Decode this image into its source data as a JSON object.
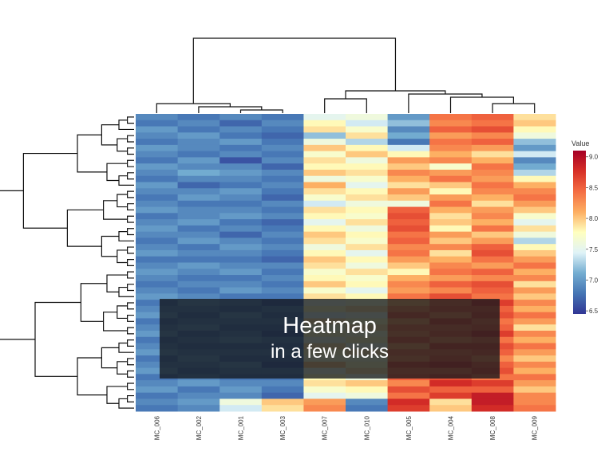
{
  "chart_data": {
    "type": "heatmap",
    "columns": [
      "MC_006",
      "MC_002",
      "MC_001",
      "MC_003",
      "MC_007",
      "MC_010",
      "MC_005",
      "MC_004",
      "MC_008",
      "MC_009"
    ],
    "legend": {
      "title": "Value",
      "ticks": [
        6.5,
        7.0,
        7.5,
        8.0,
        8.5,
        9.0
      ],
      "range": [
        6.45,
        9.1
      ],
      "placement": "right"
    },
    "colorscale": [
      "#313695",
      "#4575b4",
      "#74add1",
      "#e0f3f8",
      "#ffffbf",
      "#fdae61",
      "#f46d43",
      "#d73027",
      "#a50026"
    ],
    "row_dendrogram": true,
    "column_dendrogram": true,
    "values": [
      [
        6.9,
        6.8,
        6.9,
        6.8,
        7.5,
        7.6,
        7.0,
        8.4,
        8.5,
        7.9
      ],
      [
        6.8,
        6.9,
        6.7,
        6.9,
        7.8,
        7.4,
        7.2,
        8.3,
        8.4,
        8.0
      ],
      [
        7.0,
        6.8,
        6.9,
        6.8,
        7.9,
        7.7,
        6.9,
        8.5,
        8.6,
        7.8
      ],
      [
        6.9,
        7.0,
        6.8,
        6.7,
        7.2,
        7.9,
        7.1,
        8.2,
        8.3,
        7.6
      ],
      [
        6.8,
        6.9,
        7.0,
        6.8,
        7.6,
        7.3,
        6.8,
        8.4,
        8.5,
        7.2
      ],
      [
        7.0,
        6.9,
        6.8,
        6.9,
        8.0,
        7.8,
        7.4,
        8.3,
        8.2,
        7.0
      ],
      [
        6.9,
        6.8,
        6.9,
        6.8,
        7.7,
        8.0,
        7.8,
        8.1,
        7.9,
        7.4
      ],
      [
        6.8,
        7.0,
        6.6,
        6.9,
        7.9,
        7.6,
        8.2,
        8.3,
        8.1,
        6.9
      ],
      [
        7.0,
        6.9,
        6.9,
        6.7,
        7.8,
        7.8,
        8.0,
        7.7,
        8.4,
        7.1
      ],
      [
        6.9,
        7.1,
        7.0,
        6.9,
        8.0,
        7.9,
        8.3,
        8.2,
        8.3,
        7.3
      ],
      [
        6.8,
        6.9,
        6.9,
        6.8,
        7.6,
        7.7,
        8.1,
        8.4,
        8.2,
        7.8
      ],
      [
        7.0,
        6.7,
        6.8,
        6.9,
        8.1,
        7.5,
        7.9,
        8.0,
        8.4,
        8.1
      ],
      [
        6.9,
        6.9,
        7.0,
        6.8,
        7.9,
        7.8,
        8.2,
        7.8,
        8.3,
        8.3
      ],
      [
        6.8,
        7.0,
        6.9,
        6.7,
        7.7,
        7.9,
        8.0,
        8.2,
        8.1,
        8.4
      ],
      [
        6.9,
        6.8,
        6.8,
        6.9,
        7.4,
        7.6,
        7.6,
        8.4,
        7.9,
        8.2
      ],
      [
        7.0,
        6.9,
        6.9,
        6.8,
        7.9,
        7.8,
        8.5,
        8.1,
        8.2,
        8.0
      ],
      [
        6.8,
        6.9,
        7.0,
        6.9,
        7.8,
        7.7,
        8.6,
        7.9,
        8.3,
        7.7
      ],
      [
        6.9,
        7.0,
        6.8,
        6.7,
        7.5,
        7.9,
        8.5,
        8.0,
        8.1,
        7.5
      ],
      [
        7.0,
        6.8,
        6.9,
        6.8,
        7.8,
        7.6,
        8.6,
        7.8,
        8.4,
        7.9
      ],
      [
        6.9,
        6.9,
        6.7,
        6.9,
        8.0,
        7.8,
        8.4,
        8.2,
        8.0,
        7.6
      ],
      [
        6.8,
        7.0,
        6.9,
        6.8,
        7.9,
        7.7,
        8.5,
        8.0,
        8.2,
        7.3
      ],
      [
        6.9,
        6.8,
        7.0,
        6.9,
        7.6,
        7.9,
        8.3,
        8.3,
        8.5,
        7.8
      ],
      [
        7.0,
        6.9,
        6.9,
        6.8,
        7.8,
        7.5,
        8.4,
        7.9,
        8.6,
        8.0
      ],
      [
        6.8,
        6.8,
        6.8,
        6.7,
        8.0,
        7.8,
        8.2,
        8.1,
        8.4,
        8.2
      ],
      [
        6.9,
        7.0,
        6.9,
        6.9,
        7.9,
        7.6,
        8.0,
        8.3,
        8.2,
        8.4
      ],
      [
        7.0,
        6.9,
        7.0,
        6.8,
        7.7,
        7.9,
        7.8,
        8.4,
        8.5,
        8.1
      ],
      [
        6.9,
        6.8,
        6.8,
        6.9,
        7.8,
        7.7,
        8.1,
        8.2,
        8.3,
        8.3
      ],
      [
        6.8,
        6.9,
        6.9,
        6.8,
        8.0,
        7.8,
        8.3,
        8.5,
        8.6,
        7.9
      ],
      [
        6.9,
        6.8,
        7.0,
        6.9,
        7.7,
        7.5,
        8.2,
        8.3,
        8.5,
        8.2
      ],
      [
        7.0,
        6.9,
        6.8,
        6.8,
        7.9,
        7.8,
        8.4,
        8.6,
        8.4,
        8.0
      ],
      [
        6.8,
        7.0,
        6.9,
        6.7,
        7.6,
        7.7,
        8.1,
        8.4,
        8.7,
        8.3
      ],
      [
        6.9,
        6.9,
        6.8,
        6.9,
        7.8,
        7.9,
        8.3,
        8.5,
        8.5,
        8.1
      ],
      [
        7.0,
        6.8,
        7.0,
        6.8,
        7.5,
        7.6,
        8.5,
        8.3,
        8.6,
        8.4
      ],
      [
        6.8,
        6.9,
        6.9,
        6.9,
        7.9,
        7.8,
        8.2,
        8.6,
        8.4,
        8.2
      ],
      [
        6.9,
        7.0,
        6.8,
        6.8,
        7.7,
        7.9,
        8.4,
        8.4,
        8.5,
        7.9
      ],
      [
        7.0,
        6.8,
        6.9,
        6.7,
        7.8,
        7.7,
        8.3,
        8.5,
        8.7,
        8.3
      ],
      [
        6.8,
        6.9,
        7.0,
        6.9,
        7.6,
        7.8,
        8.5,
        8.3,
        8.4,
        8.1
      ],
      [
        6.9,
        6.8,
        6.8,
        6.8,
        7.9,
        7.6,
        8.2,
        8.6,
        8.6,
        8.4
      ],
      [
        7.0,
        6.9,
        6.9,
        6.9,
        7.8,
        7.9,
        8.4,
        8.4,
        8.5,
        8.2
      ],
      [
        6.8,
        7.0,
        6.8,
        6.8,
        7.7,
        7.7,
        8.3,
        8.5,
        8.3,
        8.0
      ],
      [
        6.9,
        6.9,
        7.0,
        6.7,
        8.0,
        7.8,
        8.6,
        8.7,
        8.5,
        8.3
      ],
      [
        7.0,
        6.8,
        6.9,
        6.9,
        7.6,
        7.9,
        8.4,
        8.4,
        8.6,
        8.1
      ],
      [
        6.8,
        6.9,
        6.8,
        6.8,
        7.8,
        7.6,
        8.5,
        8.6,
        8.4,
        8.4
      ],
      [
        6.9,
        7.0,
        6.9,
        6.9,
        7.9,
        8.0,
        8.3,
        8.8,
        8.7,
        8.2
      ],
      [
        7.0,
        6.8,
        7.0,
        6.8,
        7.7,
        7.8,
        8.6,
        8.5,
        8.5,
        8.0
      ],
      [
        6.8,
        6.9,
        6.9,
        6.7,
        7.5,
        7.6,
        8.4,
        8.7,
        8.9,
        8.3
      ],
      [
        6.9,
        7.0,
        7.6,
        8.0,
        8.2,
        6.9,
        8.8,
        7.9,
        8.9,
        8.3
      ],
      [
        6.8,
        6.9,
        7.4,
        7.9,
        8.3,
        6.8,
        8.7,
        8.0,
        8.8,
        8.4
      ]
    ]
  },
  "overlay": {
    "title": "Heatmap",
    "subtitle": "in a few clicks"
  }
}
